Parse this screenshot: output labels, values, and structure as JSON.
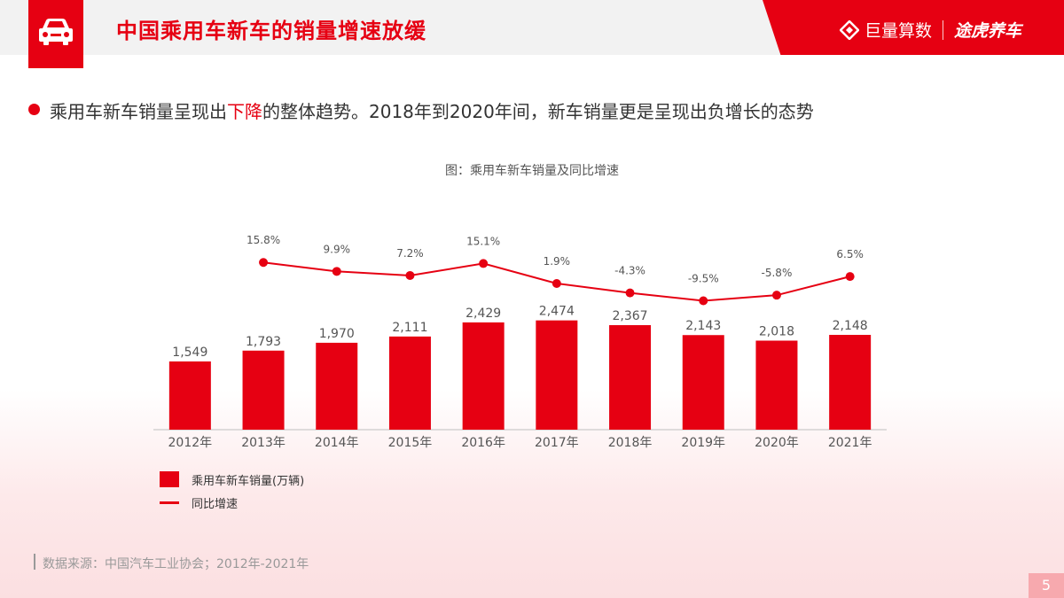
{
  "header": {
    "title": "中国乘用车新车的销量增速放缓",
    "brand_left": "巨量算数",
    "brand_right": "途虎养车"
  },
  "headline": {
    "text_before": "乘用车新车销量呈现出",
    "text_highlight": "下降",
    "text_after": "的整体趋势。2018年到2020年间，新车销量更是呈现出负增长的态势"
  },
  "chart_caption": "图：乘用车新车销量及同比增速",
  "legend": {
    "bar_label": "乘用车新车销量(万辆)",
    "line_label": "同比增速"
  },
  "source": "数据来源：中国汽车工业协会；2012年-2021年",
  "page_number": "5",
  "colors": {
    "accent": "#e60012",
    "header_gray": "#f2f2f2"
  },
  "icons": {
    "header": "car-icon",
    "brand": "brand-logo-icon"
  },
  "chart_data": {
    "type": "bar",
    "categories": [
      "2012年",
      "2013年",
      "2014年",
      "2015年",
      "2016年",
      "2017年",
      "2018年",
      "2019年",
      "2020年",
      "2021年"
    ],
    "series": [
      {
        "name": "乘用车新车销量(万辆)",
        "type": "bar",
        "values": [
          1549,
          1793,
          1970,
          2111,
          2429,
          2474,
          2367,
          2143,
          2018,
          2148
        ],
        "labels": [
          "1,549",
          "1,793",
          "1,970",
          "2,111",
          "2,429",
          "2,474",
          "2,367",
          "2,143",
          "2,018",
          "2,148"
        ]
      },
      {
        "name": "同比增速",
        "type": "line",
        "values": [
          null,
          15.8,
          9.9,
          7.2,
          15.1,
          1.9,
          -4.3,
          -9.5,
          -5.8,
          6.5
        ],
        "labels": [
          "",
          "15.8%",
          "9.9%",
          "7.2%",
          "15.1%",
          "1.9%",
          "-4.3%",
          "-9.5%",
          "-5.8%",
          "6.5%"
        ]
      }
    ],
    "title": "图：乘用车新车销量及同比增速",
    "xlabel": "",
    "ylabel": "",
    "legend_position": "bottom-left",
    "grid": false
  }
}
